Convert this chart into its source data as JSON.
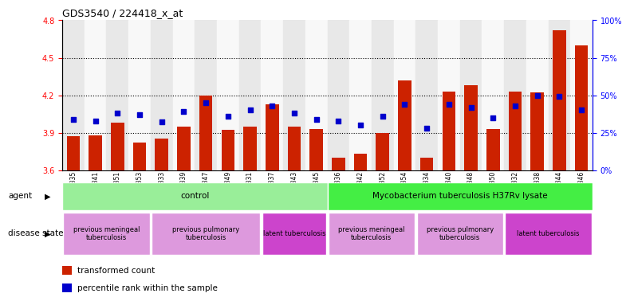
{
  "title": "GDS3540 / 224418_x_at",
  "samples": [
    "GSM280335",
    "GSM280341",
    "GSM280351",
    "GSM280353",
    "GSM280333",
    "GSM280339",
    "GSM280347",
    "GSM280349",
    "GSM280331",
    "GSM280337",
    "GSM280343",
    "GSM280345",
    "GSM280336",
    "GSM280342",
    "GSM280352",
    "GSM280354",
    "GSM280334",
    "GSM280340",
    "GSM280348",
    "GSM280350",
    "GSM280332",
    "GSM280338",
    "GSM280344",
    "GSM280346"
  ],
  "bar_values": [
    3.87,
    3.88,
    3.98,
    3.82,
    3.85,
    3.95,
    4.2,
    3.92,
    3.95,
    4.13,
    3.95,
    3.93,
    3.7,
    3.73,
    3.9,
    4.32,
    3.7,
    4.23,
    4.28,
    3.93,
    4.23,
    4.22,
    4.72,
    4.6
  ],
  "dot_values": [
    34,
    33,
    38,
    37,
    32,
    39,
    45,
    36,
    40,
    43,
    38,
    34,
    33,
    30,
    36,
    44,
    28,
    44,
    42,
    35,
    43,
    50,
    49,
    40
  ],
  "bar_color": "#cc2200",
  "dot_color": "#0000cc",
  "ylim_left": [
    3.6,
    4.8
  ],
  "ylim_right": [
    0,
    100
  ],
  "yticks_left": [
    3.6,
    3.9,
    4.2,
    4.5,
    4.8
  ],
  "yticks_right": [
    0,
    25,
    50,
    75,
    100
  ],
  "ytick_labels_right": [
    "0%",
    "25%",
    "50%",
    "75%",
    "100%"
  ],
  "hlines": [
    3.9,
    4.2,
    4.5
  ],
  "bar_baseline": 3.6,
  "agent_groups": [
    {
      "label": "control",
      "start": 0,
      "end": 12,
      "color": "#99ee99"
    },
    {
      "label": "Mycobacterium tuberculosis H37Rv lysate",
      "start": 12,
      "end": 24,
      "color": "#44ee44"
    }
  ],
  "disease_groups": [
    {
      "label": "previous meningeal\ntuberculosis",
      "start": 0,
      "end": 4,
      "color": "#dd99dd"
    },
    {
      "label": "previous pulmonary\ntuberculosis",
      "start": 4,
      "end": 9,
      "color": "#dd99dd"
    },
    {
      "label": "latent tuberculosis",
      "start": 9,
      "end": 12,
      "color": "#cc44cc"
    },
    {
      "label": "previous meningeal\ntuberculosis",
      "start": 12,
      "end": 16,
      "color": "#dd99dd"
    },
    {
      "label": "previous pulmonary\ntuberculosis",
      "start": 16,
      "end": 20,
      "color": "#dd99dd"
    },
    {
      "label": "latent tuberculosis",
      "start": 20,
      "end": 24,
      "color": "#cc44cc"
    }
  ],
  "legend_items": [
    {
      "label": "transformed count",
      "color": "#cc2200"
    },
    {
      "label": "percentile rank within the sample",
      "color": "#0000cc"
    }
  ],
  "agent_label": "agent",
  "disease_label": "disease state",
  "bar_width": 0.6,
  "col_bg_even": "#e8e8e8",
  "col_bg_odd": "#f8f8f8"
}
